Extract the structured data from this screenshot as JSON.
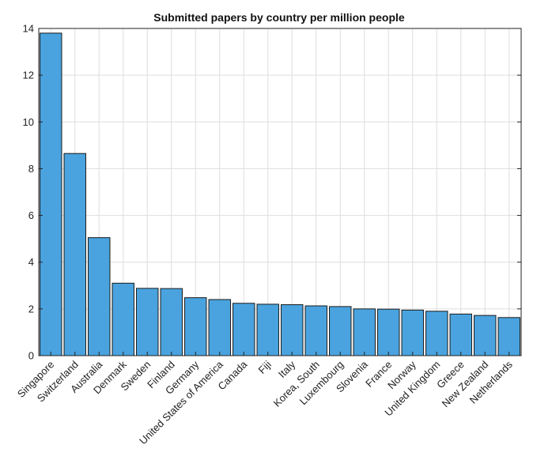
{
  "chart_data": {
    "type": "bar",
    "title": "Submitted papers by country per million people",
    "xlabel": "",
    "ylabel": "",
    "ylim": [
      0,
      14
    ],
    "yticks": [
      "0",
      "2",
      "4",
      "6",
      "8",
      "10",
      "12",
      "14"
    ],
    "grid": true,
    "bar_color": "#4aa3de",
    "categories": [
      "Singapore",
      "Switzerland",
      "Australia",
      "Denmark",
      "Sweden",
      "Finland",
      "Germany",
      "United States of America",
      "Canada",
      "Fiji",
      "Italy",
      "Korea, South",
      "Luxembourg",
      "Slovenia",
      "France",
      "Norway",
      "United Kingdom",
      "Greece",
      "New Zealand",
      "Netherlands"
    ],
    "values": [
      13.8,
      8.65,
      5.05,
      3.1,
      2.88,
      2.87,
      2.48,
      2.4,
      2.24,
      2.2,
      2.18,
      2.13,
      2.1,
      2.0,
      1.99,
      1.95,
      1.9,
      1.78,
      1.72,
      1.63
    ]
  }
}
